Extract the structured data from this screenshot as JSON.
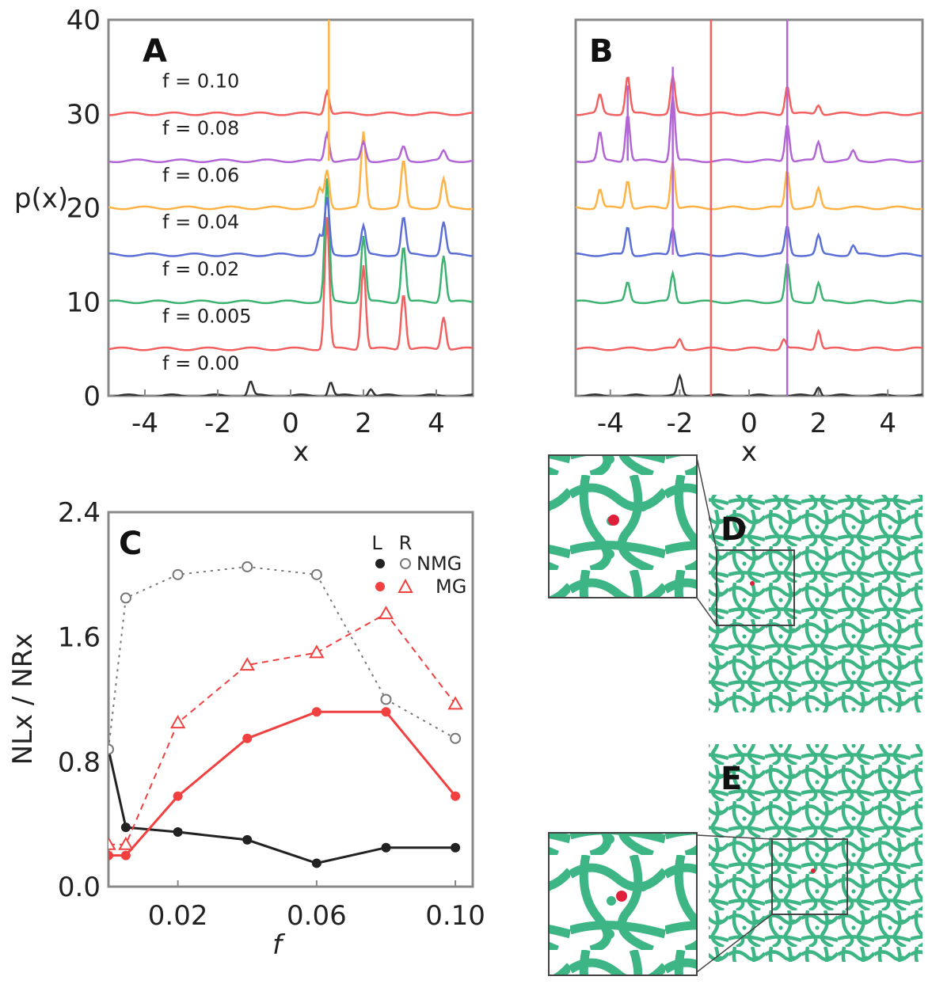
{
  "figure": {
    "panels": {
      "A": "A",
      "B": "B",
      "C": "C",
      "D": "D",
      "E": "E"
    }
  },
  "chart_data": [
    {
      "panel": "A",
      "type": "line",
      "xlabel": "x",
      "ylabel": "p(x)",
      "xlim": [
        -5,
        5
      ],
      "ylim": [
        0,
        40
      ],
      "xticks": [
        -4,
        -2,
        0,
        2,
        4
      ],
      "yticks": [
        0,
        10,
        20,
        30,
        40
      ],
      "series": [
        {
          "name": "f = 0.00",
          "offset": 0,
          "color": "#333333",
          "peaks": [
            [
              -1.1,
              1.5
            ],
            [
              1.1,
              1.5
            ],
            [
              2.2,
              0.8
            ]
          ]
        },
        {
          "name": "f = 0.005",
          "offset": 5,
          "color": "#f26060",
          "peaks": [
            [
              1.0,
              14
            ],
            [
              2.0,
              9
            ],
            [
              3.1,
              6
            ],
            [
              4.2,
              3.5
            ]
          ]
        },
        {
          "name": "f = 0.02",
          "offset": 10,
          "color": "#3cb371",
          "peaks": [
            [
              1.0,
              13
            ],
            [
              2.0,
              7
            ],
            [
              3.1,
              6
            ],
            [
              4.2,
              5
            ]
          ]
        },
        {
          "name": "f = 0.04",
          "offset": 15,
          "color": "#5b6fd6",
          "peaks": [
            [
              0.8,
              2
            ],
            [
              1.0,
              6
            ],
            [
              2.0,
              3
            ],
            [
              3.1,
              4
            ],
            [
              4.2,
              3.5
            ]
          ]
        },
        {
          "name": "f = 0.06",
          "offset": 20,
          "color": "#ffb347",
          "peaks": [
            [
              0.8,
              2
            ],
            [
              1.0,
              4
            ],
            [
              2.0,
              8
            ],
            [
              3.1,
              5
            ],
            [
              4.2,
              3
            ]
          ]
        },
        {
          "name": "f = 0.08",
          "offset": 25,
          "color": "#b266d6",
          "peaks": [
            [
              1.0,
              3
            ],
            [
              2.0,
              2
            ],
            [
              3.1,
              1.5
            ],
            [
              4.2,
              1
            ]
          ]
        },
        {
          "name": "f = 0.10",
          "offset": 30,
          "color": "#f26060",
          "peaks": [
            [
              1.0,
              2.5
            ]
          ]
        }
      ],
      "extra_spike": {
        "x": 1.05,
        "top": 40,
        "color": "#ffb347"
      }
    },
    {
      "panel": "B",
      "type": "line",
      "xlabel": "x",
      "xlim": [
        -5,
        5
      ],
      "ylim": [
        0,
        40
      ],
      "xticks": [
        -4,
        -2,
        0,
        2,
        4
      ],
      "series": [
        {
          "offset": 0,
          "color": "#333333",
          "peaks": [
            [
              -2.0,
              2
            ],
            [
              2.0,
              1
            ]
          ]
        },
        {
          "offset": 5,
          "color": "#f26060",
          "peaks": [
            [
              -2.0,
              1
            ],
            [
              1.0,
              1
            ],
            [
              2.0,
              2
            ]
          ]
        },
        {
          "offset": 10,
          "color": "#3cb371",
          "peaks": [
            [
              -3.5,
              2
            ],
            [
              -2.2,
              3
            ],
            [
              1.1,
              4
            ],
            [
              2.0,
              2
            ]
          ]
        },
        {
          "offset": 15,
          "color": "#5b6fd6",
          "peaks": [
            [
              -3.5,
              3
            ],
            [
              -2.2,
              3
            ],
            [
              1.1,
              3
            ],
            [
              2.0,
              2
            ],
            [
              3.0,
              1
            ]
          ]
        },
        {
          "offset": 20,
          "color": "#ffb347",
          "peaks": [
            [
              -4.3,
              2
            ],
            [
              -3.5,
              3
            ],
            [
              -2.2,
              5
            ],
            [
              1.1,
              4
            ],
            [
              2.0,
              2
            ]
          ]
        },
        {
          "offset": 25,
          "color": "#b266d6",
          "peaks": [
            [
              -4.3,
              3
            ],
            [
              -3.5,
              5
            ],
            [
              -2.2,
              7
            ],
            [
              1.1,
              4
            ],
            [
              2.0,
              2
            ],
            [
              3.0,
              1
            ]
          ]
        },
        {
          "offset": 30,
          "color": "#f26060",
          "peaks": [
            [
              -4.3,
              2
            ],
            [
              -3.5,
              4
            ],
            [
              -2.2,
              4
            ],
            [
              1.1,
              3
            ],
            [
              2.0,
              1
            ]
          ]
        }
      ],
      "spikes": [
        {
          "x": -3.5,
          "from": 25,
          "to": 33,
          "color": "#b266d6"
        },
        {
          "x": -2.2,
          "from": 15,
          "to": 35,
          "color": "#b266d6"
        },
        {
          "x": -1.1,
          "from": 0,
          "to": 40,
          "color": "#f26060"
        },
        {
          "x": 1.1,
          "from": 0,
          "to": 40,
          "color": "#b266d6"
        }
      ]
    },
    {
      "panel": "C",
      "type": "line",
      "xlabel": "f",
      "ylabel": "NLx / NRx",
      "xlim": [
        0,
        0.105
      ],
      "ylim": [
        0,
        2.4
      ],
      "xticks": [
        0.02,
        0.06,
        0.1
      ],
      "xtick_labels": [
        "0.02",
        "0.06",
        "0.10"
      ],
      "yticks": [
        0.0,
        0.8,
        1.6,
        2.4
      ],
      "ytick_labels": [
        "0.0",
        "0.8",
        "1.6",
        "2.4"
      ],
      "legend": {
        "header_L": "L",
        "header_R": "R",
        "row1": "NMG",
        "row2": "MG",
        "placement": "top-right"
      },
      "series": [
        {
          "key": "NMG-L",
          "color": "#222222",
          "marker": "filled-circle",
          "dash": "solid",
          "x": [
            0.0,
            0.005,
            0.02,
            0.04,
            0.06,
            0.08,
            0.1
          ],
          "y": [
            0.88,
            0.38,
            0.35,
            0.3,
            0.15,
            0.25,
            0.25
          ]
        },
        {
          "key": "NMG-R",
          "color": "#777777",
          "marker": "open-circle",
          "dash": "dotted",
          "x": [
            0.0,
            0.005,
            0.02,
            0.04,
            0.06,
            0.08,
            0.1
          ],
          "y": [
            0.88,
            1.85,
            2.0,
            2.05,
            2.0,
            1.2,
            0.95
          ]
        },
        {
          "key": "MG-L",
          "color": "#f04040",
          "marker": "filled-circle",
          "dash": "solid",
          "x": [
            0.0,
            0.005,
            0.02,
            0.04,
            0.06,
            0.08,
            0.1
          ],
          "y": [
            0.2,
            0.2,
            0.58,
            0.95,
            1.12,
            1.12,
            0.58
          ]
        },
        {
          "key": "MG-R",
          "color": "#f04040",
          "marker": "open-triangle",
          "dash": "dashed",
          "x": [
            0.0,
            0.005,
            0.02,
            0.04,
            0.06,
            0.08,
            0.1
          ],
          "y": [
            0.27,
            0.27,
            1.05,
            1.42,
            1.5,
            1.75,
            1.17
          ]
        }
      ]
    }
  ],
  "images": {
    "D": {
      "label": "D",
      "pattern_color": "#3db585",
      "marker_color": "#e0203a"
    },
    "E": {
      "label": "E",
      "pattern_color": "#3db585",
      "marker_color": "#e0203a"
    }
  }
}
